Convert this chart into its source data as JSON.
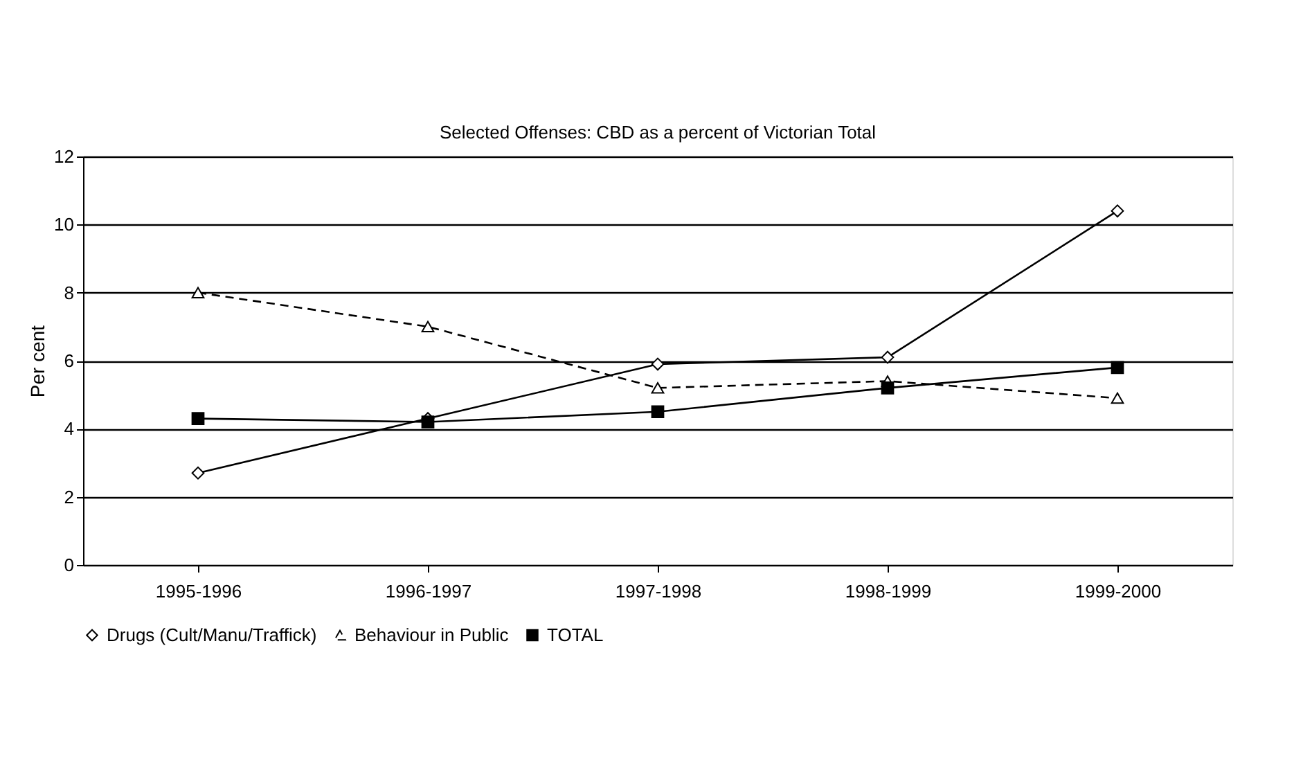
{
  "chart_data": {
    "type": "line",
    "title": "Selected Offenses: CBD as a percent of Victorian Total",
    "ylabel": "Per cent",
    "categories": [
      "1995-1996",
      "1996-1997",
      "1997-1998",
      "1998-1999",
      "1999-2000"
    ],
    "series": [
      {
        "name": "Drugs (Cult/Manu/Traffick)",
        "color": "#000000",
        "marker": "diamond",
        "line_style": "solid",
        "values": [
          2.7,
          4.3,
          5.9,
          6.1,
          10.4
        ]
      },
      {
        "name": "Behaviour in Public",
        "color": "#000000",
        "marker": "triangle",
        "line_style": "dashed",
        "values": [
          8.0,
          7.0,
          5.2,
          5.4,
          4.9
        ]
      },
      {
        "name": "TOTAL",
        "color": "#000000",
        "marker": "square",
        "line_style": "solid",
        "values": [
          4.3,
          4.2,
          4.5,
          5.2,
          5.8
        ]
      }
    ],
    "ylim": [
      0,
      12
    ],
    "yticks": [
      0,
      2,
      4,
      6,
      8,
      10,
      12
    ],
    "grid": "y",
    "legend": "bottom"
  }
}
